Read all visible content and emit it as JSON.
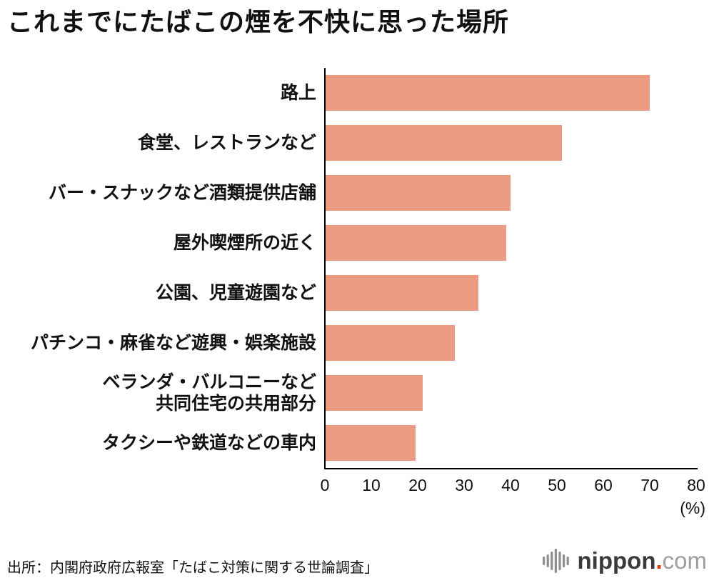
{
  "title": "これまでにたばこの煙を不快に思った場所",
  "chart_data": {
    "type": "bar",
    "orientation": "horizontal",
    "title": "これまでにたばこの煙を不快に思った場所",
    "categories": [
      "路上",
      "食堂、レストランなど",
      "バー・スナックなど酒類提供店舗",
      "屋外喫煙所の近く",
      "公園、児童遊園など",
      "パチンコ・麻雀など遊興・娯楽施設",
      "ベランダ・バルコニーなど\n共同住宅の共用部分",
      "タクシーや鉄道などの車内"
    ],
    "values": [
      70,
      51,
      40,
      39,
      33,
      28,
      21,
      19.5
    ],
    "xlabel": "(%)",
    "ylabel": "",
    "xlim": [
      0,
      80
    ],
    "xticks": [
      0,
      10,
      20,
      30,
      40,
      50,
      60,
      70,
      80
    ],
    "unit_label": "(%)",
    "bar_color": "#EC9B80",
    "axis_color": "#000000",
    "grid": false,
    "legend": false
  },
  "source": "出所：内閣府政府広報室「たばこ対策に関する世論調査」",
  "logo": {
    "brand": "nippon",
    "dot": ".",
    "tld": "com",
    "brand_color": "#3A3A3A",
    "dot_color": "#E8380D",
    "tld_color": "#9E9E9E",
    "mark_color": "#8E8E8E",
    "mark_bar_heights": [
      12,
      18,
      26,
      34,
      26,
      18,
      12
    ]
  }
}
